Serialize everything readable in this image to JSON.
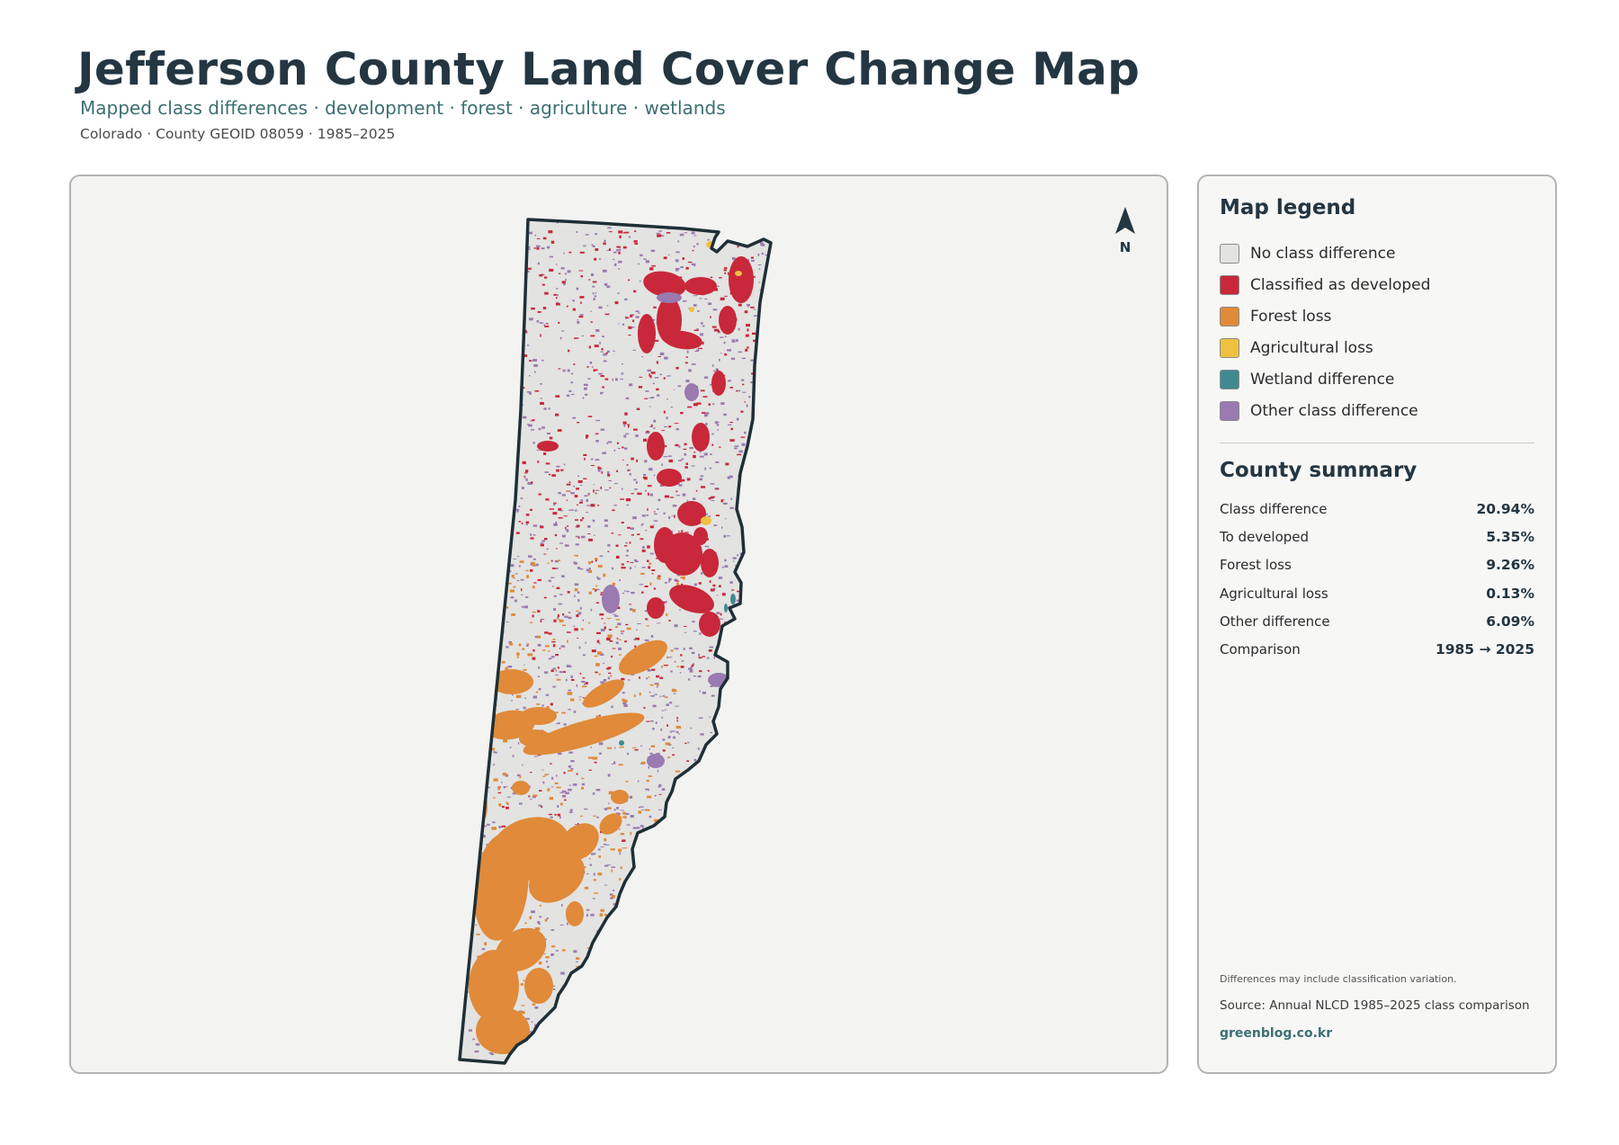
{
  "header": {
    "title": "Jefferson County Land Cover Change Map",
    "subtitle": "Mapped class differences · development · forest · agriculture · wetlands",
    "meta": "Colorado · County GEOID 08059 · 1985–2025"
  },
  "map": {
    "north_label": "N",
    "outline_color": "#1e2f36",
    "background_color": "#e3e3e1"
  },
  "legend": {
    "heading": "Map legend",
    "items": [
      {
        "label": "No class difference",
        "color": "#e3e3e1"
      },
      {
        "label": "Classified as developed",
        "color": "#c8283a"
      },
      {
        "label": "Forest loss",
        "color": "#e08a3a"
      },
      {
        "label": "Agricultural loss",
        "color": "#f0c040"
      },
      {
        "label": "Wetland difference",
        "color": "#3f8a90"
      },
      {
        "label": "Other class difference",
        "color": "#9a7ab0"
      }
    ]
  },
  "summary": {
    "heading": "County summary",
    "rows": [
      {
        "label": "Class difference",
        "value": "20.94%"
      },
      {
        "label": "To developed",
        "value": "5.35%"
      },
      {
        "label": "Forest loss",
        "value": "9.26%"
      },
      {
        "label": "Agricultural loss",
        "value": "0.13%"
      },
      {
        "label": "Other difference",
        "value": "6.09%"
      },
      {
        "label": "Comparison",
        "value": "1985 → 2025"
      }
    ]
  },
  "footer": {
    "note": "Differences may include classification variation.",
    "source": "Source: Annual NLCD 1985–2025 class comparison",
    "website": "greenblog.co.kr"
  }
}
